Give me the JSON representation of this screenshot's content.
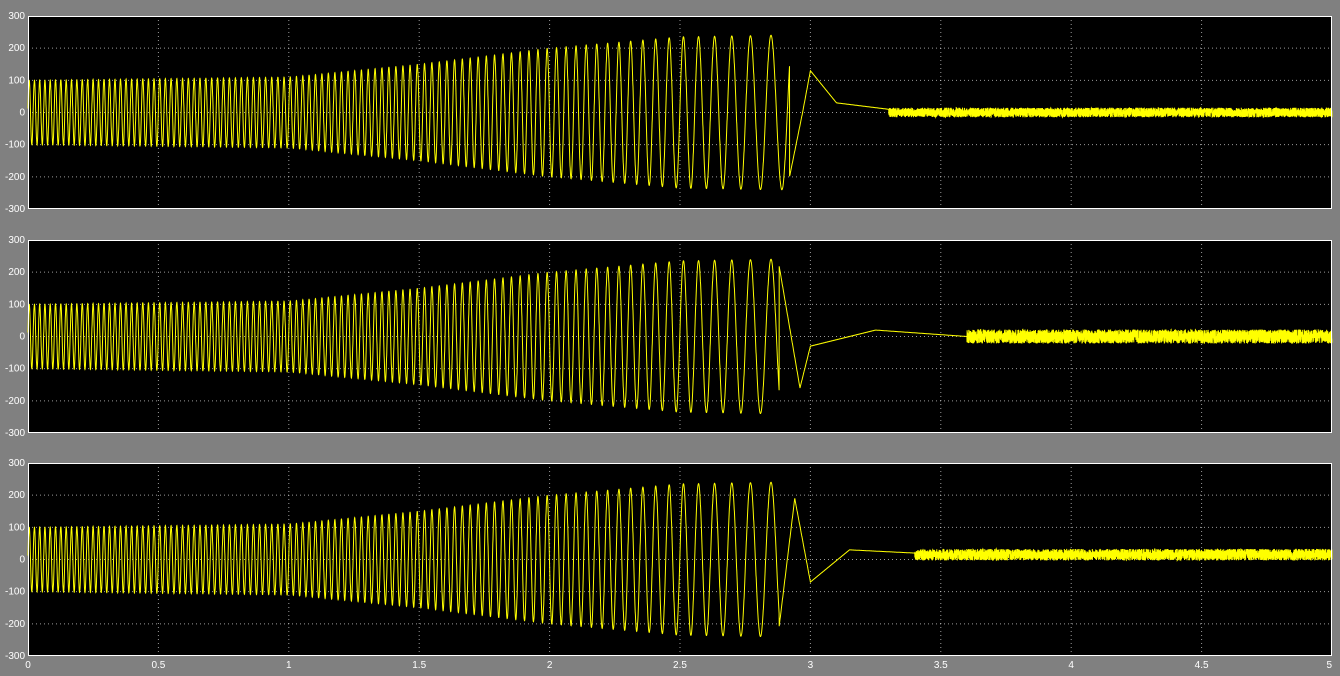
{
  "window": {
    "background": "#808080"
  },
  "colors": {
    "axes_bg": "#000000",
    "trace": "#ffff00",
    "grid": "#ffffff",
    "tick_text": "#ffffff"
  },
  "chart_data": [
    {
      "type": "line",
      "title": "",
      "xlabel": "",
      "ylabel": "",
      "xlim": [
        0,
        5
      ],
      "ylim": [
        -300,
        300
      ],
      "xticks": [
        0,
        0.5,
        1,
        1.5,
        2,
        2.5,
        3,
        3.5,
        4,
        4.5,
        5
      ],
      "yticks": [
        "300",
        "200",
        "100",
        "0",
        "-100",
        "-200",
        "-300"
      ],
      "grid": true,
      "signal": {
        "description_points_t": [
          0,
          0.5,
          1,
          1.5,
          2,
          2.5,
          2.85
        ],
        "amplitude": [
          100,
          105,
          110,
          150,
          200,
          235,
          240
        ],
        "freq_hz": [
          50,
          46,
          42,
          36,
          28,
          18,
          12
        ],
        "transient_t": [
          2.92,
          2.97,
          3.0,
          3.1,
          3.3
        ],
        "transient_v": [
          -200,
          0,
          130,
          30,
          10
        ],
        "steady_band": {
          "center": 0,
          "half_width": 15
        }
      }
    },
    {
      "type": "line",
      "title": "",
      "xlabel": "",
      "ylabel": "",
      "xlim": [
        0,
        5
      ],
      "ylim": [
        -300,
        300
      ],
      "xticks": [
        0,
        0.5,
        1,
        1.5,
        2,
        2.5,
        3,
        3.5,
        4,
        4.5,
        5
      ],
      "yticks": [
        "300",
        "200",
        "100",
        "0",
        "-100",
        "-200",
        "-300"
      ],
      "grid": true,
      "signal": {
        "description_points_t": [
          0,
          0.5,
          1,
          1.5,
          2,
          2.5,
          2.85
        ],
        "amplitude": [
          100,
          105,
          110,
          150,
          200,
          235,
          240
        ],
        "freq_hz": [
          50,
          46,
          42,
          36,
          28,
          18,
          12
        ],
        "transient_t": [
          2.88,
          2.96,
          3.0,
          3.25,
          3.6
        ],
        "transient_v": [
          220,
          -160,
          -30,
          20,
          0
        ],
        "steady_band": {
          "center": 0,
          "half_width": 22
        }
      }
    },
    {
      "type": "line",
      "title": "",
      "xlabel": "",
      "ylabel": "",
      "xlim": [
        0,
        5
      ],
      "ylim": [
        -300,
        300
      ],
      "xticks": [
        "0",
        "0.5",
        "1",
        "1.5",
        "2",
        "2.5",
        "3",
        "3.5",
        "4",
        "4.5",
        "5"
      ],
      "yticks": [
        "300",
        "200",
        "100",
        "0",
        "-100",
        "-200",
        "-300"
      ],
      "grid": true,
      "signal": {
        "description_points_t": [
          0,
          0.5,
          1,
          1.5,
          2,
          2.5,
          2.85
        ],
        "amplitude": [
          100,
          105,
          110,
          150,
          200,
          235,
          240
        ],
        "freq_hz": [
          50,
          46,
          42,
          36,
          28,
          18,
          12
        ],
        "transient_t": [
          2.88,
          2.94,
          3.0,
          3.15,
          3.4
        ],
        "transient_v": [
          -210,
          190,
          -70,
          30,
          20
        ],
        "steady_band": {
          "center": 15,
          "half_width": 18
        }
      }
    }
  ]
}
